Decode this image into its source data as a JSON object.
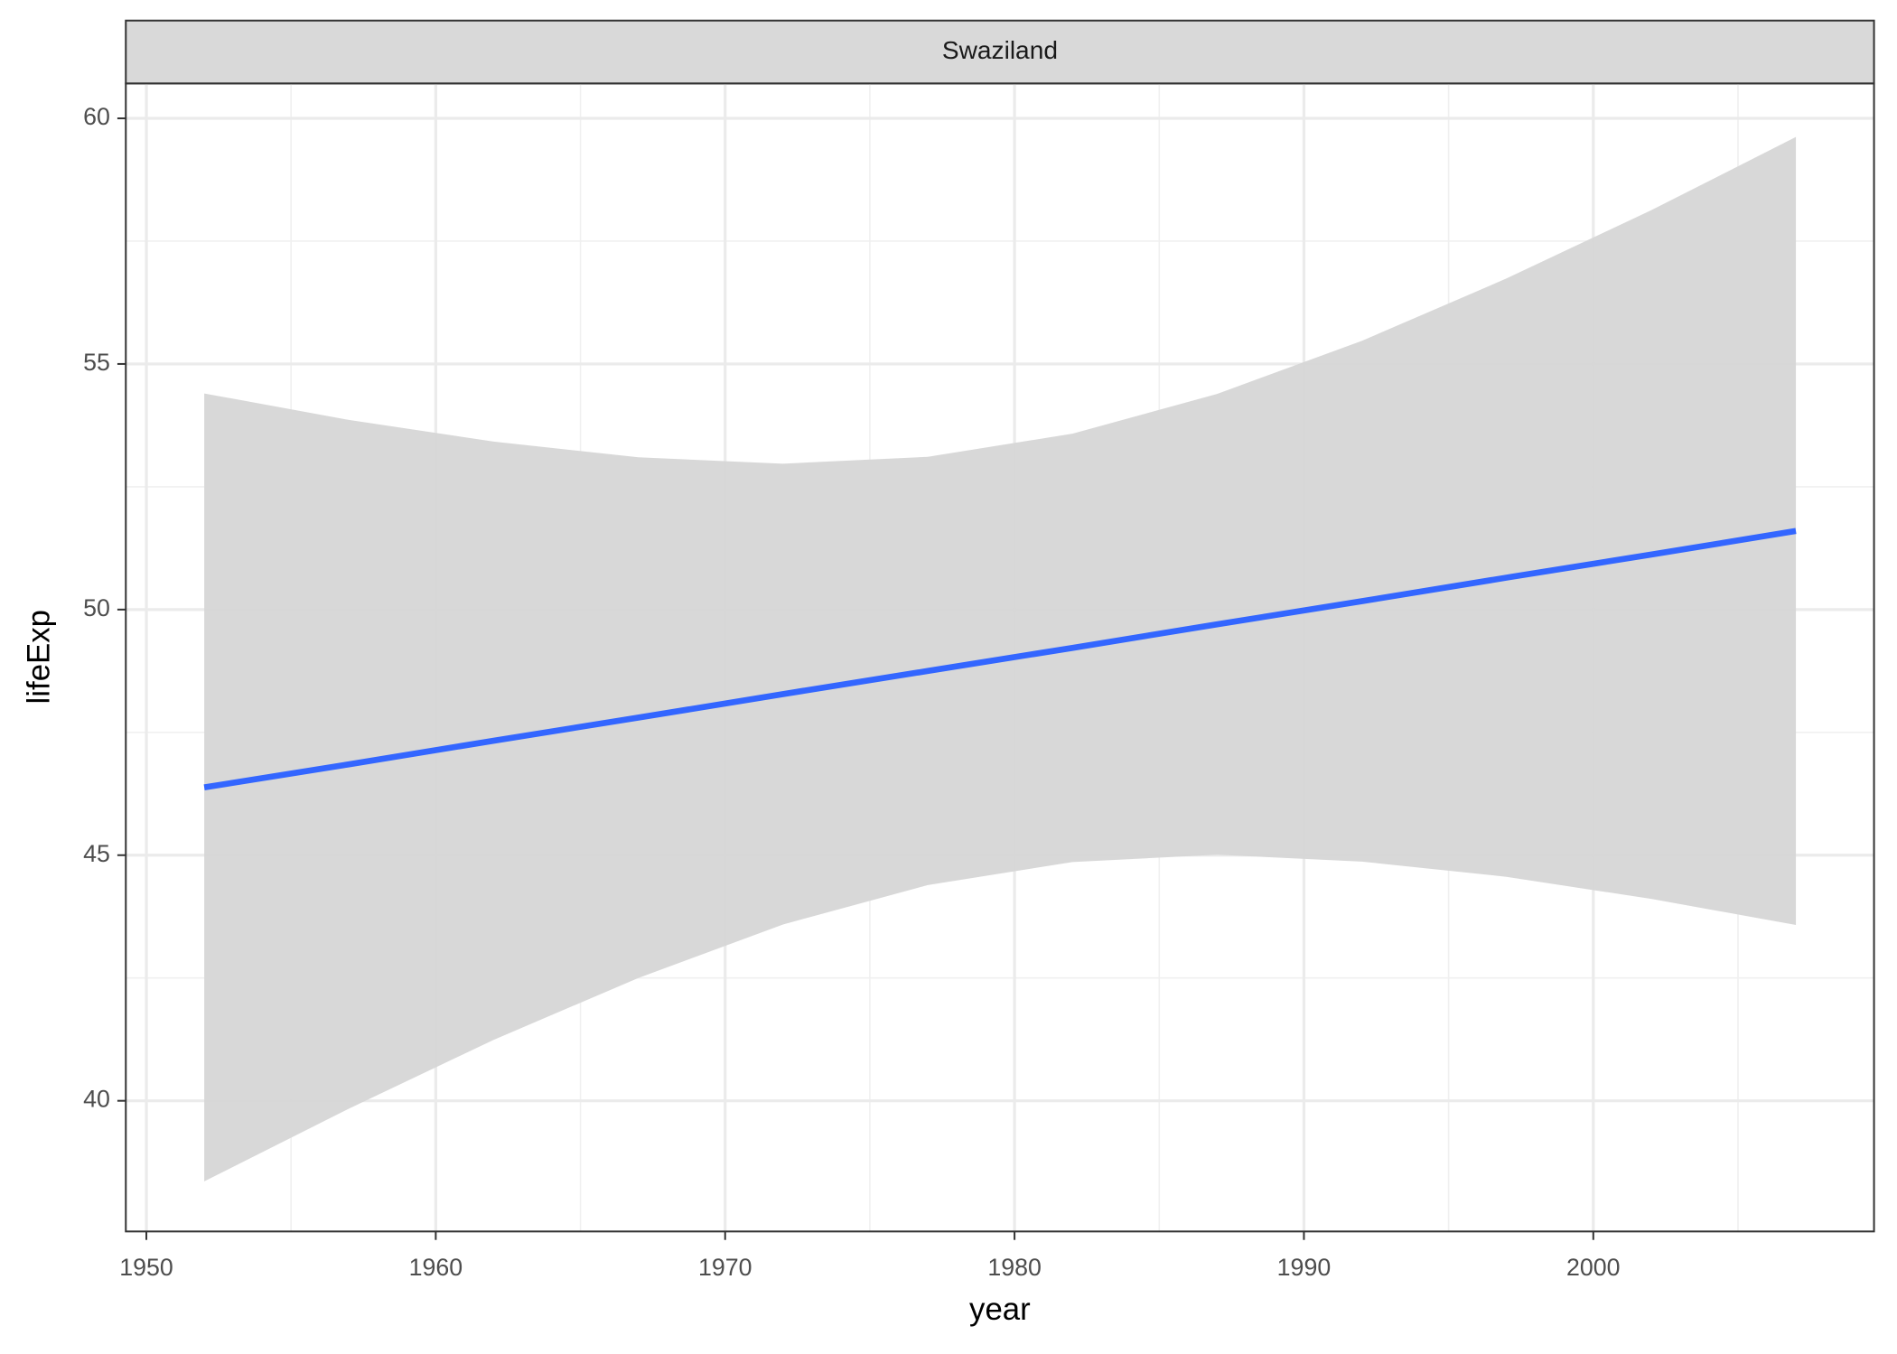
{
  "chart_data": {
    "type": "smooth",
    "facet": "Swaziland",
    "x_label": "year",
    "y_label": "lifeExp",
    "x": [
      1952,
      1957,
      1962,
      1967,
      1972,
      1977,
      1982,
      1987,
      1992,
      1997,
      2002,
      2007
    ],
    "fit": [
      46.38,
      46.85,
      47.33,
      47.8,
      48.28,
      48.75,
      49.22,
      49.7,
      50.17,
      50.65,
      51.12,
      51.6
    ],
    "upper": [
      54.4,
      53.86,
      53.42,
      53.1,
      52.97,
      53.11,
      53.58,
      54.39,
      55.47,
      56.74,
      58.13,
      59.62
    ],
    "lower": [
      38.36,
      39.84,
      41.24,
      42.5,
      43.59,
      44.39,
      44.86,
      45.01,
      44.87,
      44.56,
      44.11,
      43.58
    ],
    "line_color": "#3366ff",
    "ribbon_color": "#d6d6d6",
    "xlim": [
      1949.29,
      2009.7
    ],
    "ylim": [
      37.34,
      60.71
    ],
    "xticks": [
      1950,
      1960,
      1970,
      1980,
      1990,
      2000
    ],
    "yticks": [
      40,
      45,
      50,
      55,
      60
    ],
    "xminor": [
      1955,
      1965,
      1975,
      1985,
      1995,
      2005
    ],
    "yminor": [
      42.5,
      47.5,
      52.5,
      57.5
    ],
    "grid": true
  }
}
